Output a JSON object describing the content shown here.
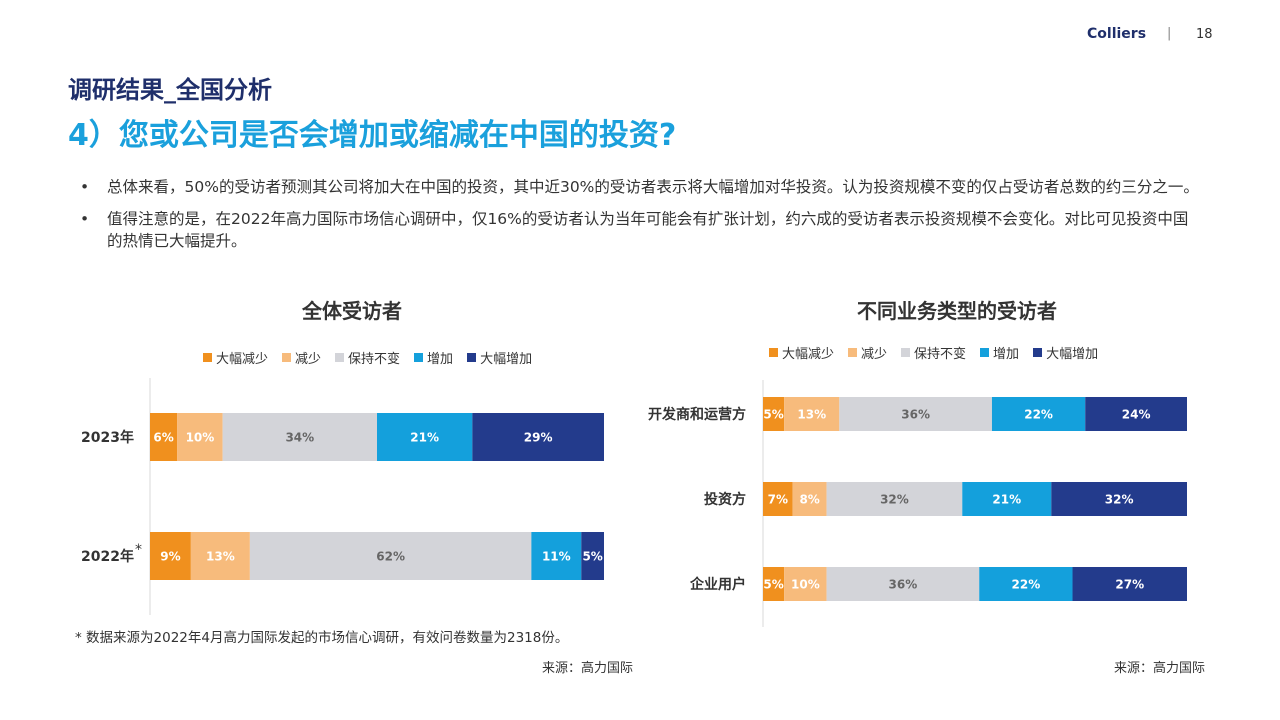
{
  "header": {
    "brand": "Colliers",
    "separator": "|",
    "page_number": "18"
  },
  "section_title": "调研结果_全国分析",
  "question": "4）您或公司是否会增加或缩减在中国的投资?",
  "bullets": [
    "总体来看，50%的受访者预测其公司将加大在中国的投资，其中近30%的受访者表示将大幅增加对华投资。认为投资规模不变的仅占受访者总数的约三分之一。",
    "值得注意的是，在2022年高力国际市场信心调研中，仅16%的受访者认为当年可能会有扩张计划，约六成的受访者表示投资规模不会变化。对比可见投资中国的热情已大幅提升。"
  ],
  "bullet_symbol": "•",
  "legend_items": [
    "大幅减少",
    "减少",
    "保持不变",
    "增加",
    "大幅增加"
  ],
  "colors": [
    "#f0901e",
    "#f7bb7c",
    "#d3d4d9",
    "#14a0dc",
    "#233b8c"
  ],
  "label_colors": [
    "#ffffff",
    "#ffffff",
    "#666666",
    "#ffffff",
    "#ffffff"
  ],
  "chart_data": [
    {
      "type": "bar",
      "orientation": "horizontal-stacked",
      "title": "全体受访者",
      "categories": [
        "2023年",
        "2022年"
      ],
      "category_marks": [
        "",
        "*"
      ],
      "series": [
        {
          "name": "大幅减少",
          "values": [
            6,
            9
          ]
        },
        {
          "name": "减少",
          "values": [
            10,
            13
          ]
        },
        {
          "name": "保持不变",
          "values": [
            34,
            62
          ]
        },
        {
          "name": "增加",
          "values": [
            21,
            11
          ]
        },
        {
          "name": "大幅增加",
          "values": [
            29,
            5
          ]
        }
      ],
      "value_suffix": "%",
      "legend_position": "top"
    },
    {
      "type": "bar",
      "orientation": "horizontal-stacked",
      "title": "不同业务类型的受访者",
      "categories": [
        "开发商和运营方",
        "投资方",
        "企业用户"
      ],
      "category_marks": [
        "",
        "",
        ""
      ],
      "series": [
        {
          "name": "大幅减少",
          "values": [
            5,
            7,
            5
          ]
        },
        {
          "name": "减少",
          "values": [
            13,
            8,
            10
          ]
        },
        {
          "name": "保持不变",
          "values": [
            36,
            32,
            36
          ]
        },
        {
          "name": "增加",
          "values": [
            22,
            21,
            22
          ]
        },
        {
          "name": "大幅增加",
          "values": [
            24,
            32,
            27
          ]
        }
      ],
      "value_suffix": "%",
      "legend_position": "top"
    }
  ],
  "footnote": "* 数据来源为2022年4月高力国际发起的市场信心调研，有效问卷数量为2318份。",
  "sources": [
    "来源：高力国际",
    "来源：高力国际"
  ]
}
